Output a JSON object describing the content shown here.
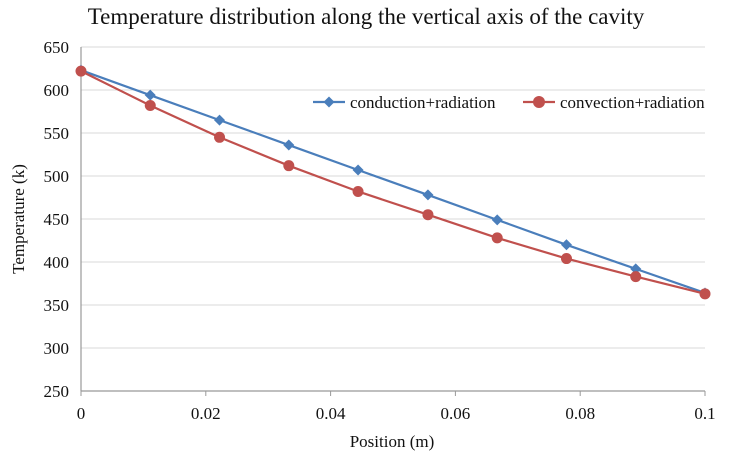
{
  "chart_data": {
    "type": "line",
    "title": "Temperature distribution along the vertical axis of the cavity",
    "xlabel": "Position (m)",
    "ylabel": "Temperature (k)",
    "xlim": [
      0,
      0.1
    ],
    "ylim": [
      250,
      650
    ],
    "xticks": [
      0,
      0.02,
      0.04,
      0.06,
      0.08,
      0.1
    ],
    "xtick_labels": [
      "0",
      "0.02",
      "0.04",
      "0.06",
      "0.08",
      "0.1"
    ],
    "yticks": [
      250,
      300,
      350,
      400,
      450,
      500,
      550,
      600,
      650
    ],
    "ytick_labels": [
      "250",
      "300",
      "350",
      "400",
      "450",
      "500",
      "550",
      "600",
      "650"
    ],
    "grid": "horizontal",
    "legend_position": "top-right",
    "series": [
      {
        "name": "conduction+radiation",
        "color": "#4a7ebb",
        "marker": "diamond",
        "x": [
          0,
          0.0111,
          0.0222,
          0.0333,
          0.0444,
          0.0556,
          0.0667,
          0.0778,
          0.0889,
          0.1
        ],
        "values": [
          623,
          594,
          565,
          536,
          507,
          478,
          449,
          420,
          392,
          364
        ]
      },
      {
        "name": "convection+radiation",
        "color": "#c0504d",
        "marker": "circle",
        "x": [
          0,
          0.0111,
          0.0222,
          0.0333,
          0.0444,
          0.0556,
          0.0667,
          0.0778,
          0.0889,
          0.1
        ],
        "values": [
          622,
          582,
          545,
          512,
          482,
          455,
          428,
          404,
          383,
          363
        ]
      }
    ]
  }
}
